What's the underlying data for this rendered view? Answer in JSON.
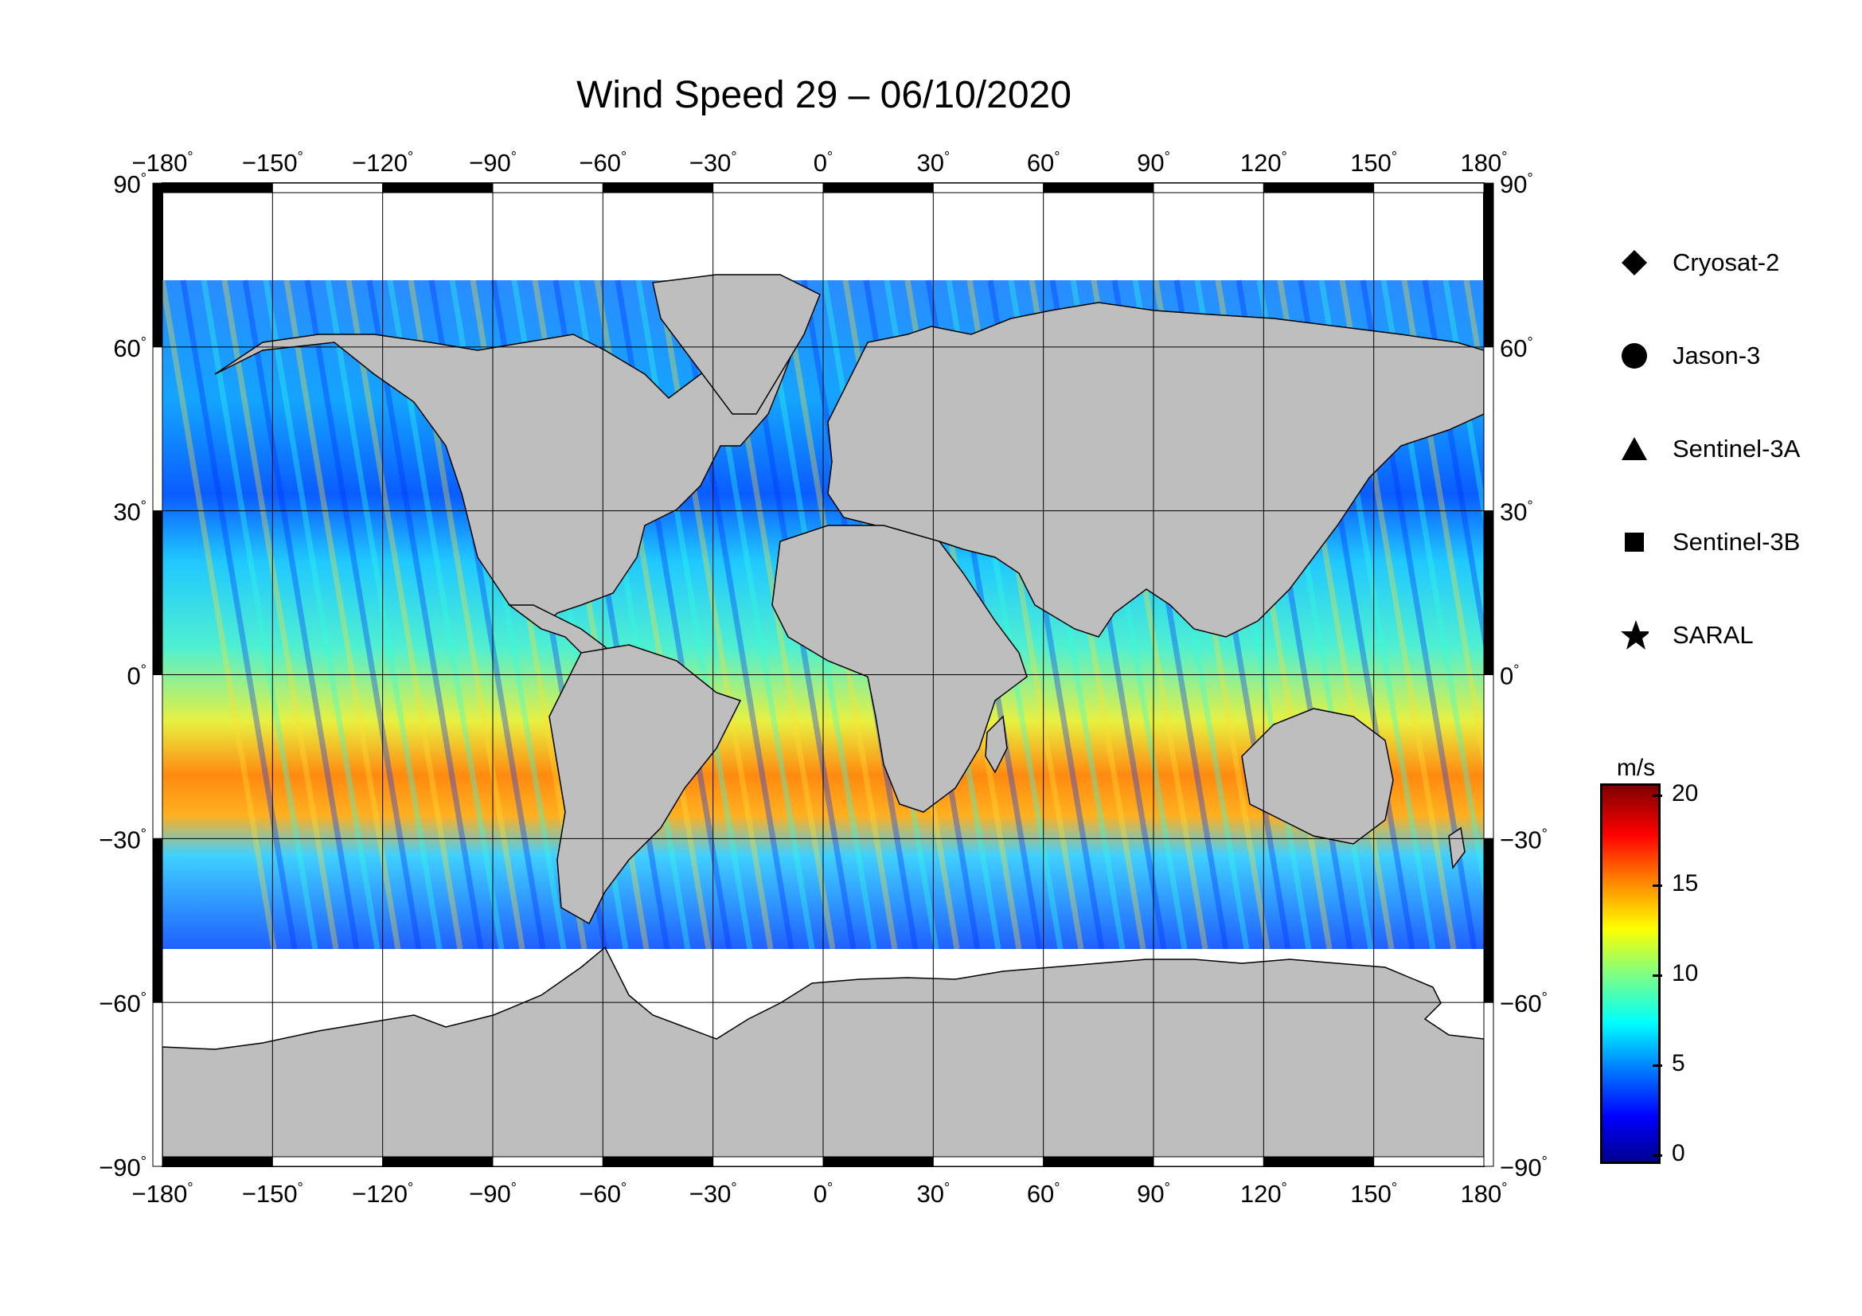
{
  "title": "Wind Speed 29 – 06/10/2020",
  "map": {
    "lon_ticks": [
      "−180",
      "−150",
      "−120",
      "−90",
      "−60",
      "−30",
      "0",
      "30",
      "60",
      "90",
      "120",
      "150",
      "180"
    ],
    "lat_ticks": [
      "90",
      "60",
      "30",
      "0",
      "−30",
      "−60",
      "−90"
    ],
    "degree_symbol": "°",
    "land_color": "#bebebe",
    "ice_color": "#ffffff",
    "grid": true
  },
  "legend": {
    "items": [
      {
        "label": "Cryosat-2",
        "icon": "diamond-icon"
      },
      {
        "label": "Jason-3",
        "icon": "circle-icon"
      },
      {
        "label": "Sentinel-3A",
        "icon": "triangle-icon"
      },
      {
        "label": "Sentinel-3B",
        "icon": "square-icon"
      },
      {
        "label": "SARAL",
        "icon": "star-icon"
      }
    ]
  },
  "colorbar": {
    "unit": "m/s",
    "ticks": [
      "20",
      "15",
      "10",
      "5",
      "0"
    ],
    "min": 0,
    "max": 20,
    "colors": [
      "#00008f",
      "#0000ff",
      "#0080ff",
      "#00ffff",
      "#80ff80",
      "#ffff00",
      "#ff8000",
      "#ff0000",
      "#800000"
    ]
  }
}
